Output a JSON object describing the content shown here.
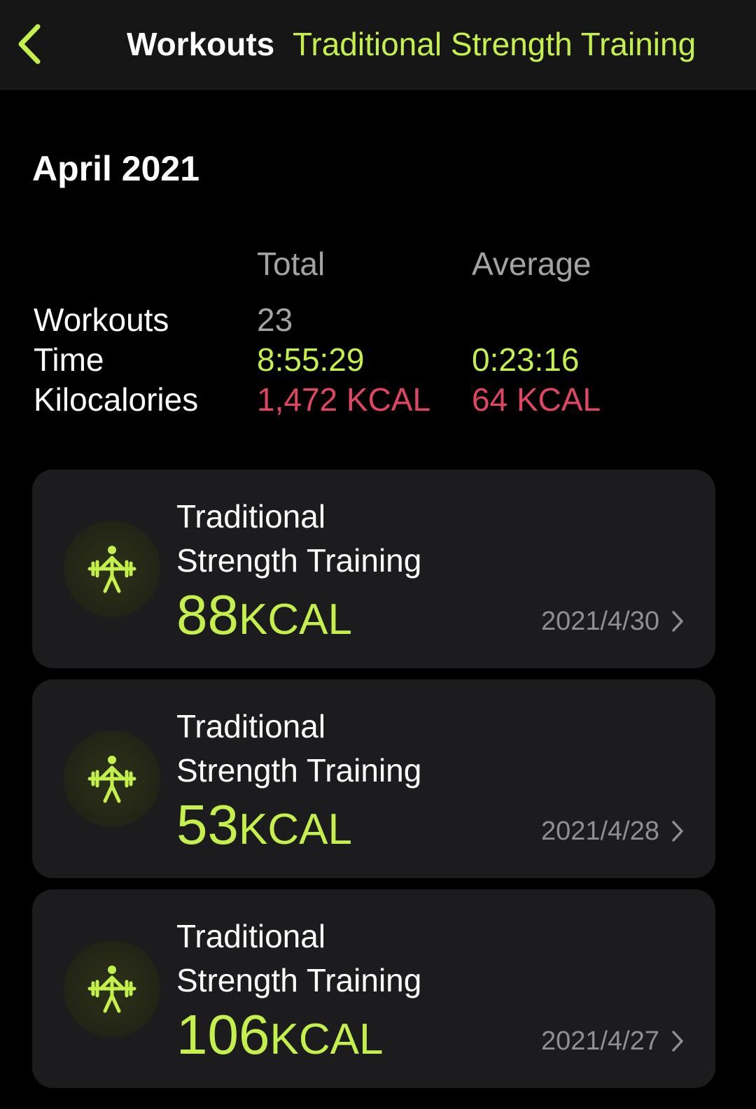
{
  "nav": {
    "title": "Workouts",
    "subtitle": "Traditional Strength Training",
    "back_icon": "chevron-left-icon"
  },
  "month": "April 2021",
  "summary": {
    "headers": {
      "total": "Total",
      "average": "Average"
    },
    "rows": [
      {
        "label": "Workouts",
        "total": "23",
        "average": ""
      },
      {
        "label": "Time",
        "total": "8:55:29",
        "average": "0:23:16"
      },
      {
        "label": "Kilocalories",
        "total": "1,472 KCAL",
        "average": "64 KCAL"
      }
    ]
  },
  "workouts": [
    {
      "name_line1": "Traditional",
      "name_line2": "Strength Training",
      "kcal": "88",
      "unit": "KCAL",
      "date": "2021/4/30",
      "icon": "weightlifting-icon"
    },
    {
      "name_line1": "Traditional",
      "name_line2": "Strength Training",
      "kcal": "53",
      "unit": "KCAL",
      "date": "2021/4/28",
      "icon": "weightlifting-icon"
    },
    {
      "name_line1": "Traditional",
      "name_line2": "Strength Training",
      "kcal": "106",
      "unit": "KCAL",
      "date": "2021/4/27",
      "icon": "weightlifting-icon"
    }
  ],
  "colors": {
    "accent_green": "#c3f04a",
    "calorie_red": "#e04662",
    "background": "#000000",
    "card": "#1c1c1e"
  }
}
